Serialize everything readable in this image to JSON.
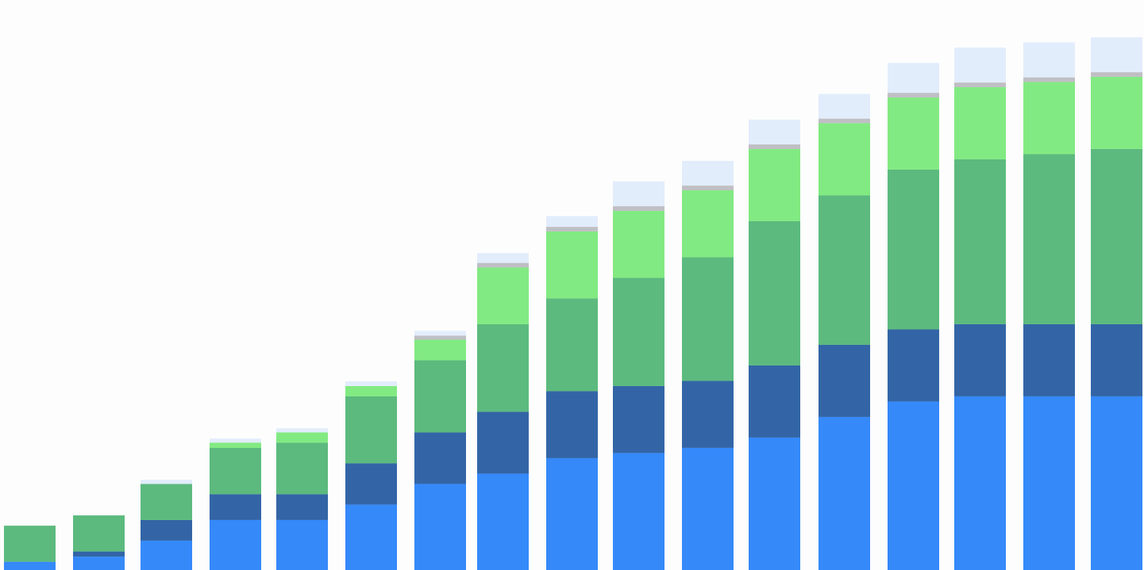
{
  "colors": {
    "background": "#fdfdfd"
  },
  "chart_data": {
    "type": "bar",
    "stacked": true,
    "grid": false,
    "legend": "none",
    "ylim": [
      0,
      104
    ],
    "categories": [
      "",
      "",
      "",
      "",
      "",
      "",
      "",
      "",
      "",
      "",
      "",
      "",
      "",
      "",
      "",
      "",
      ""
    ],
    "series": [
      {
        "color": "#3589f9",
        "values": [
          1.6,
          2.6,
          5.7,
          9.7,
          9.7,
          12.7,
          16.7,
          18.7,
          21.7,
          22.7,
          23.7,
          25.7,
          29.7,
          32.7,
          33.7,
          33.7,
          33.7
        ]
      },
      {
        "color": "#3365a6",
        "values": [
          0,
          1,
          4,
          5,
          5,
          8,
          10,
          12,
          13,
          13,
          13,
          14,
          14,
          14,
          14,
          14,
          14
        ]
      },
      {
        "color": "#5cba7e",
        "values": [
          7,
          7,
          7,
          9,
          10,
          13,
          14,
          17,
          18,
          21,
          24,
          28,
          29,
          31,
          32,
          33,
          34
        ]
      },
      {
        "color": "#82ea82",
        "values": [
          0,
          0,
          0,
          1,
          2,
          2,
          4,
          11,
          13,
          13,
          13,
          14,
          14,
          14,
          14,
          14,
          14
        ]
      },
      {
        "color": "#bfbfc4",
        "values": [
          0,
          0,
          0,
          0,
          0,
          0,
          0.8,
          0.9,
          0.9,
          0.9,
          0.9,
          0.9,
          0.9,
          0.9,
          0.9,
          0.9,
          0.9
        ]
      },
      {
        "color": "#e2edfc",
        "values": [
          0,
          0,
          0.8,
          0.8,
          0.8,
          0.9,
          0.9,
          1.9,
          2.1,
          4.8,
          4.8,
          4.8,
          4.8,
          5.8,
          6.8,
          6.8,
          6.8
        ]
      }
    ]
  }
}
